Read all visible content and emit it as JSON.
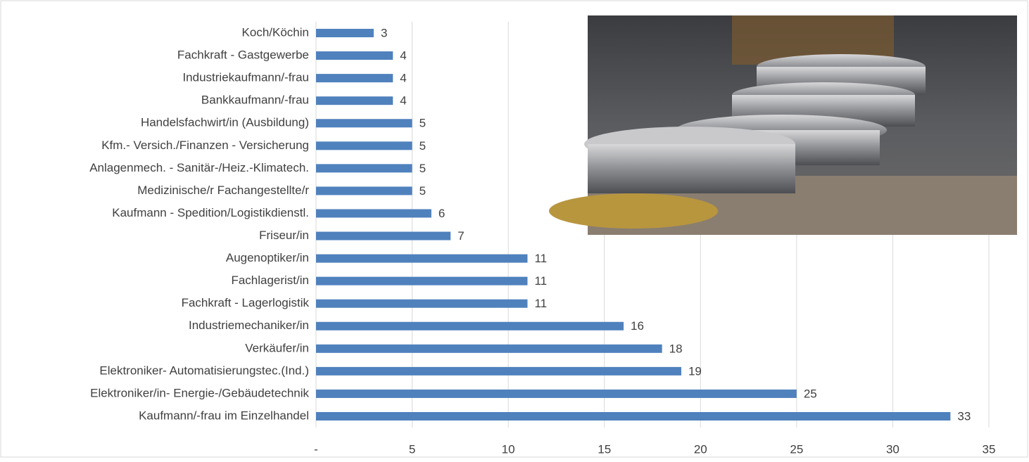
{
  "chart_data": {
    "type": "bar",
    "orientation": "horizontal",
    "categories": [
      "Koch/Köchin",
      "Fachkraft - Gastgewerbe",
      "Industriekaufmann/-frau",
      "Bankkaufmann/-frau",
      "Handelsfachwirt/in (Ausbildung)",
      "Kfm.- Versich./Finanzen - Versicherung",
      "Anlagenmech. - Sanitär-/Heiz.-Klimatech.",
      "Medizinische/r Fachangestellte/r",
      "Kaufmann - Spedition/Logistikdienstl.",
      "Friseur/in",
      "Augenoptiker/in",
      "Fachlagerist/in",
      "Fachkraft - Lagerlogistik",
      "Industriemechaniker/in",
      "Verkäufer/in",
      "Elektroniker- Automatisierungstec.(Ind.)",
      "Elektroniker/in- Energie-/Gebäudetechnik",
      "Kaufmann/-frau im Einzelhandel"
    ],
    "values": [
      3,
      4,
      4,
      4,
      5,
      5,
      5,
      5,
      6,
      7,
      11,
      11,
      11,
      16,
      18,
      19,
      25,
      33
    ],
    "color": "#4f81bd",
    "xlim": [
      0,
      35
    ],
    "xticks": [
      {
        "value": 0,
        "label": "-"
      },
      5,
      10,
      15,
      20,
      25,
      30,
      35
    ],
    "grid": true
  }
}
